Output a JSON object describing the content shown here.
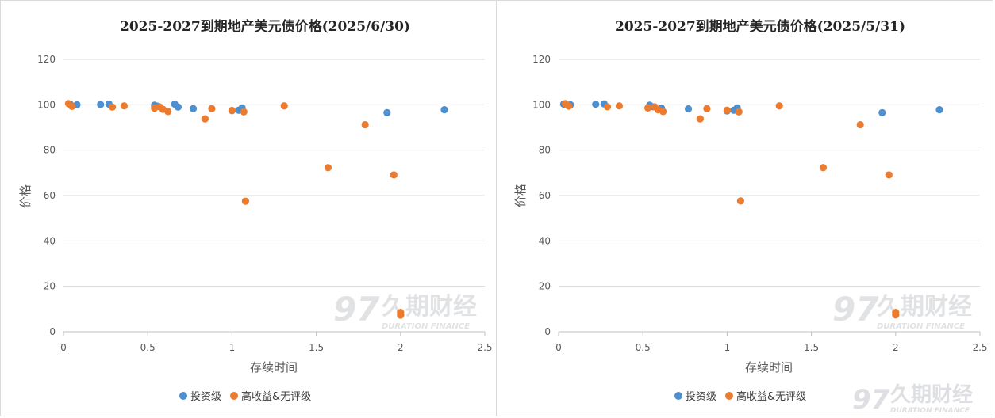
{
  "watermark": {
    "cn": "久期财经",
    "en": "DURATION FINANCE",
    "logo": "97"
  },
  "colors": {
    "investment": "#4e8fcf",
    "highyield": "#eb7b2f",
    "grid": "#d9d9d9",
    "watermark": "#c9cbcf"
  },
  "chart_data": [
    {
      "type": "scatter",
      "title": "2025-2027到期地产美元债价格(2025/6/30)",
      "xlabel": "存续时间",
      "ylabel": "价格",
      "xlim": [
        0,
        2.5
      ],
      "ylim": [
        0,
        120
      ],
      "xticks": [
        "0",
        "0.5",
        "1",
        "1.5",
        "2",
        "2.5"
      ],
      "yticks": [
        "0",
        "20",
        "40",
        "60",
        "80",
        "100",
        "120"
      ],
      "grid": true,
      "legend_position": "bottom",
      "series": [
        {
          "name": "投资级",
          "points": [
            [
              0.04,
              100.2
            ],
            [
              0.08,
              100
            ],
            [
              0.22,
              100.1
            ],
            [
              0.27,
              100.3
            ],
            [
              0.54,
              99.8
            ],
            [
              0.56,
              99.4
            ],
            [
              0.66,
              100.3
            ],
            [
              0.68,
              99
            ],
            [
              0.77,
              98.3
            ],
            [
              1.0,
              97.4
            ],
            [
              1.04,
              97.6
            ],
            [
              1.06,
              98.6
            ],
            [
              1.92,
              96.5
            ],
            [
              2.26,
              97.8
            ]
          ]
        },
        {
          "name": "高收益&无评级",
          "points": [
            [
              0.03,
              100.5
            ],
            [
              0.05,
              99.3
            ],
            [
              0.29,
              99
            ],
            [
              0.36,
              99.5
            ],
            [
              0.54,
              98.5
            ],
            [
              0.57,
              99.1
            ],
            [
              0.59,
              98
            ],
            [
              0.62,
              97
            ],
            [
              0.84,
              93.8
            ],
            [
              0.88,
              98.3
            ],
            [
              1.0,
              97.5
            ],
            [
              1.07,
              96.9
            ],
            [
              1.08,
              57.5
            ],
            [
              1.31,
              99.5
            ],
            [
              1.57,
              72.3
            ],
            [
              1.79,
              91.2
            ],
            [
              1.96,
              69.1
            ],
            [
              2.0,
              7.3
            ],
            [
              2.0,
              8.5
            ]
          ]
        }
      ]
    },
    {
      "type": "scatter",
      "title": "2025-2027到期地产美元债价格(2025/5/31)",
      "xlabel": "存续时间",
      "ylabel": "价格",
      "xlim": [
        0,
        2.5
      ],
      "ylim": [
        0,
        120
      ],
      "xticks": [
        "0",
        "0.5",
        "1",
        "1.5",
        "2",
        "2.5"
      ],
      "yticks": [
        "0",
        "20",
        "40",
        "60",
        "80",
        "100",
        "120"
      ],
      "grid": true,
      "legend_position": "bottom",
      "series": [
        {
          "name": "投资级",
          "points": [
            [
              0.03,
              100.3
            ],
            [
              0.07,
              100
            ],
            [
              0.22,
              100.2
            ],
            [
              0.27,
              100.4
            ],
            [
              0.54,
              99.8
            ],
            [
              0.56,
              99.1
            ],
            [
              0.61,
              98.5
            ],
            [
              0.77,
              98.2
            ],
            [
              1.0,
              97.3
            ],
            [
              1.04,
              97.6
            ],
            [
              1.06,
              98.6
            ],
            [
              1.92,
              96.5
            ],
            [
              2.26,
              97.8
            ]
          ]
        },
        {
          "name": "高收益&无评级",
          "points": [
            [
              0.04,
              100.5
            ],
            [
              0.06,
              99.4
            ],
            [
              0.29,
              99.1
            ],
            [
              0.36,
              99.5
            ],
            [
              0.53,
              98.6
            ],
            [
              0.57,
              99.1
            ],
            [
              0.59,
              97.8
            ],
            [
              0.62,
              97
            ],
            [
              0.84,
              93.8
            ],
            [
              0.88,
              98.3
            ],
            [
              1.0,
              97.6
            ],
            [
              1.07,
              96.9
            ],
            [
              1.08,
              57.6
            ],
            [
              1.31,
              99.5
            ],
            [
              1.57,
              72.3
            ],
            [
              1.79,
              91.2
            ],
            [
              1.96,
              69.1
            ],
            [
              2.0,
              7.4
            ],
            [
              2.0,
              8.5
            ]
          ]
        }
      ]
    }
  ]
}
